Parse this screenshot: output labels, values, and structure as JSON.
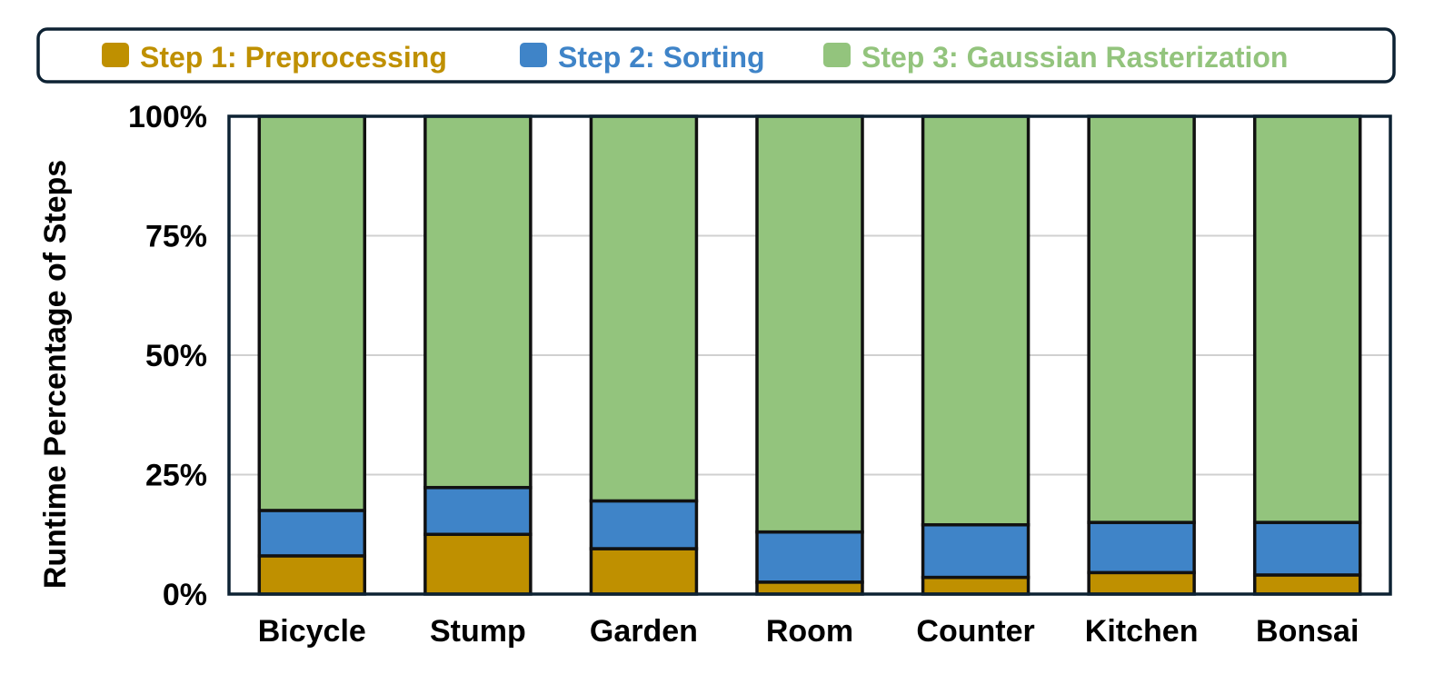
{
  "chart_data": {
    "type": "bar",
    "stacked": true,
    "normalized": true,
    "title": "",
    "xlabel": "",
    "ylabel": "Runtime Percentage of Steps",
    "ylim": [
      0,
      100
    ],
    "yticks": [
      0,
      25,
      50,
      75,
      100
    ],
    "ytick_labels": [
      "0%",
      "25%",
      "50%",
      "75%",
      "100%"
    ],
    "grid": true,
    "legend_position": "top",
    "categories": [
      "Bicycle",
      "Stump",
      "Garden",
      "Room",
      "Counter",
      "Kitchen",
      "Bonsai"
    ],
    "series": [
      {
        "name": "Step 1: Preprocessing",
        "color": "#BF9000",
        "values": [
          8,
          12.5,
          9.5,
          2.5,
          3.5,
          4.5,
          4
        ]
      },
      {
        "name": "Step 2: Sorting",
        "color": "#3F84C8",
        "values": [
          9.5,
          9.8,
          10,
          10.5,
          11,
          10.5,
          11
        ]
      },
      {
        "name": "Step 3: Gaussian Rasterization",
        "color": "#93C47D",
        "values": [
          82.5,
          77.7,
          80.5,
          87,
          85.5,
          85,
          85
        ]
      }
    ]
  }
}
